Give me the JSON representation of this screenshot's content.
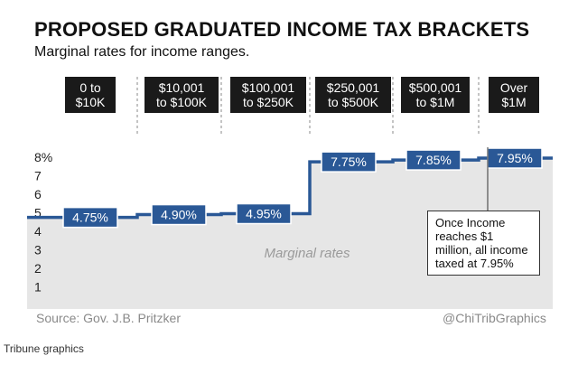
{
  "header": {
    "title": "PROPOSED GRADUATED INCOME TAX BRACKETS",
    "subtitle": "Marginal rates for income ranges."
  },
  "brackets": [
    {
      "line1": "0 to",
      "line2": "$10K"
    },
    {
      "line1": "$10,001",
      "line2": "to $100K"
    },
    {
      "line1": "$100,001",
      "line2": "to $250K"
    },
    {
      "line1": "$250,001",
      "line2": "to $500K"
    },
    {
      "line1": "$500,001",
      "line2": "to $1M"
    },
    {
      "line1": "Over",
      "line2": "$1M"
    }
  ],
  "area_label": "Marginal rates",
  "callout": {
    "text": "Once Income reaches $1 million, all income taxed at 7.95%"
  },
  "footer": {
    "source": "Source: Gov. J.B. Pritzker",
    "handle": "@ChiTribGraphics",
    "credit": "Tribune graphics"
  },
  "colors": {
    "line": "#2a5896",
    "area": "#e6e6e6",
    "label_box": "#2a5896",
    "bracket_box": "#1a1a1a"
  },
  "chart_data": {
    "type": "area",
    "title": "PROPOSED GRADUATED INCOME TAX BRACKETS",
    "subtitle": "Marginal rates for income ranges.",
    "categories": [
      "0 to $10K",
      "$10,001 to $100K",
      "$100,001 to $250K",
      "$250,001 to $500K",
      "$500,001 to $1M",
      "Over $1M"
    ],
    "values": [
      4.75,
      4.9,
      4.95,
      7.75,
      7.85,
      7.95
    ],
    "value_labels": [
      "4.75%",
      "4.90%",
      "4.95%",
      "7.75%",
      "7.85%",
      "7.95%"
    ],
    "yticks": [
      "1",
      "2",
      "3",
      "4",
      "5",
      "6",
      "7",
      "8%"
    ],
    "ylim": [
      0,
      8
    ],
    "grid": false
  }
}
